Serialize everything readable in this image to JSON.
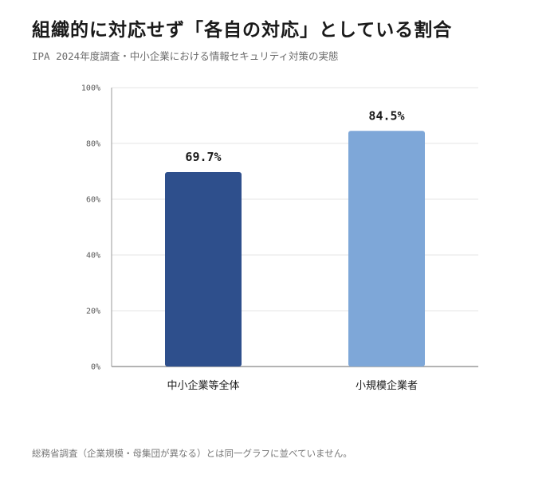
{
  "header": {
    "title": "組織的に対応せず「各自の対応」としている割合",
    "subtitle": "IPA 2024年度調査・中小企業における情報セキュリティ対策の実態"
  },
  "footer": {
    "note": "総務省調査（企業規模・母集団が異なる）とは同一グラフに並べていません。"
  },
  "chart_data": {
    "type": "bar",
    "categories": [
      "中小企業等全体",
      "小規模企業者"
    ],
    "values": [
      69.7,
      84.5
    ],
    "data_labels": [
      "69.7%",
      "84.5%"
    ],
    "colors": [
      "#2e4f8c",
      "#7ea7d8"
    ],
    "ylim": [
      0,
      100
    ],
    "yticks": [
      0,
      20,
      40,
      60,
      80,
      100
    ],
    "ytick_labels": [
      "0%",
      "20%",
      "40%",
      "60%",
      "80%",
      "100%"
    ],
    "grid": true,
    "legend": "none"
  }
}
